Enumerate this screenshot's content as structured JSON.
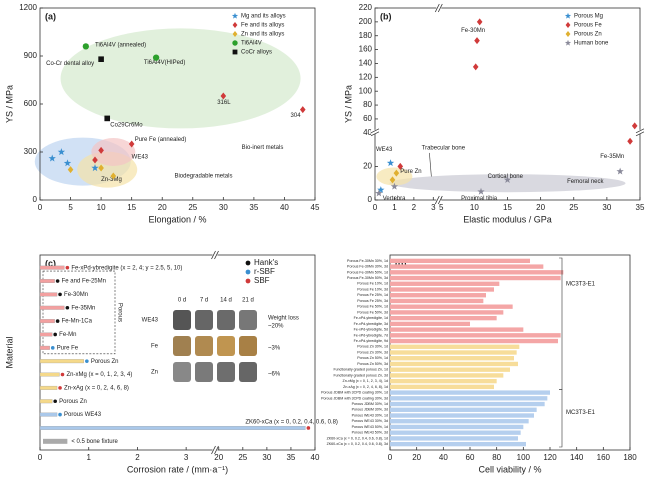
{
  "chart_data": [
    {
      "type": "scatter",
      "label": "(a)",
      "xlabel": "Elongation / %",
      "ylabel": "YS / MPa",
      "xlim": [
        0,
        45
      ],
      "xticks": [
        0,
        5,
        10,
        15,
        20,
        25,
        30,
        35,
        40,
        45
      ],
      "ylim": [
        0,
        1200
      ],
      "yticks": [
        0,
        300,
        600,
        900,
        1200
      ],
      "series": [
        {
          "name": "Mg and its alloys",
          "color": "#3a8fd0",
          "marker": "star",
          "x": [
            2,
            3.5,
            4.5,
            9
          ],
          "y": [
            260,
            300,
            230,
            200
          ]
        },
        {
          "name": "Fe and its alloys",
          "color": "#d03a3a",
          "marker": "diamond",
          "x": [
            9,
            10,
            15,
            30,
            43
          ],
          "y": [
            250,
            310,
            350,
            650,
            565
          ]
        },
        {
          "name": "Zn and its alloys",
          "color": "#e0b030",
          "marker": "diamond",
          "x": [
            5,
            10,
            12
          ],
          "y": [
            190,
            200,
            150
          ]
        },
        {
          "name": "Ti6Al4V",
          "color": "#2ca02c",
          "marker": "circle",
          "x": [
            7.5,
            19
          ],
          "y": [
            960,
            890
          ]
        },
        {
          "name": "CoCr alloys",
          "color": "#111111",
          "marker": "square",
          "x": [
            10,
            11
          ],
          "y": [
            880,
            510
          ]
        }
      ],
      "annotations": [
        "Ti6Al4V (annealed)",
        "Ti6Al4V(HIPed)",
        "Co-Cr dental alloy",
        "Co29Cr6Mo",
        "316L",
        "304",
        "Pure Fe (annealed)",
        "WE43",
        "Zn-3Mg"
      ],
      "regions": [
        "Bio-inert metals",
        "Biodegradable metals"
      ],
      "legend": "upper right"
    },
    {
      "type": "scatter",
      "label": "(b)",
      "xlabel": "Elastic modulus / GPa",
      "ylabel": "YS / MPa",
      "xlim": [
        0,
        35
      ],
      "xbreak": [
        3,
        5
      ],
      "xticks": [
        0,
        1,
        2,
        3,
        5,
        10,
        15,
        20,
        25,
        30,
        35
      ],
      "ylim": [
        0,
        220
      ],
      "ybreak": [
        40,
        40
      ],
      "yticks": [
        0,
        20,
        40,
        60,
        80,
        100,
        120,
        140,
        160,
        180,
        200,
        220
      ],
      "series": [
        {
          "name": "Porous Mg",
          "color": "#3a8fd0",
          "marker": "star",
          "x": [
            0.8,
            0.3
          ],
          "y": [
            22,
            6
          ]
        },
        {
          "name": "Porous Fe",
          "color": "#d03a3a",
          "marker": "diamond",
          "x": [
            1.3,
            10.2,
            10.4,
            10.8,
            33.5,
            34.2
          ],
          "y": [
            20,
            135,
            173,
            200,
            35,
            50
          ]
        },
        {
          "name": "Porous Zn",
          "color": "#e0b030",
          "marker": "diamond",
          "x": [
            0.9,
            1.1
          ],
          "y": [
            12,
            16
          ]
        },
        {
          "name": "Human bone",
          "color": "#8a8a9a",
          "marker": "star",
          "x": [
            0.2,
            1,
            11,
            15,
            32
          ],
          "y": [
            4,
            8,
            5,
            12,
            17
          ]
        }
      ],
      "annotations": [
        "WE43",
        "Pure Zn",
        "Trabecular bone",
        "Vertebra",
        "Cortical bone",
        "Proximal tibia",
        "Femoral neck",
        "Fe-30Mn",
        "Fe-35Mn"
      ],
      "legend": "upper right"
    },
    {
      "type": "hbar",
      "label": "(c)",
      "xlabel": "Corrosion rate / (mm·a⁻¹)",
      "ylabel": "Material",
      "xlim": [
        0,
        40
      ],
      "xbreak": [
        3.5,
        20
      ],
      "xticks": [
        0,
        1,
        2,
        3,
        20,
        25,
        30,
        35,
        40
      ],
      "categories": [
        "Fe-xPd-ybredigite (x = 2, 4; y = 2.5, 5, 10)",
        "Fe and Fe-25Mn",
        "Fe-30Mn",
        "Fe-35Mn",
        "Fe-Mn-1Ca",
        "Fe-Mn",
        "Pure Fe",
        "Porous Zn",
        "Zn-xMg (x = 0, 1, 2, 3, 4)",
        "Zn-xAg (x = 0, 2, 4, 6, 8)",
        "Porous Zn",
        "Porous WE43",
        "ZK60-xCa (x = 0, 0.2, 0.4, 0.6, 0.8)"
      ],
      "values": [
        0.5,
        0.3,
        0.35,
        0.5,
        0.3,
        0.25,
        0.2,
        0.9,
        0.4,
        0.35,
        0.25,
        0.35,
        38
      ],
      "bar_colors": [
        "#f3a0a0",
        "#f3a0a0",
        "#f3a0a0",
        "#f3a0a0",
        "#f3a0a0",
        "#f3a0a0",
        "#f3a0a0",
        "#f5d98a",
        "#f5d98a",
        "#f5d98a",
        "#f5d98a",
        "#aac8ea",
        "#aac8ea"
      ],
      "marker_colors": [
        "#d03a3a",
        "#111111",
        "#111111",
        "#111111",
        "#111111",
        "#111111",
        "#3a8fd0",
        "#3a8fd0",
        "#d03a3a",
        "#d03a3a",
        "#111111",
        "#3a8fd0",
        "#d03a3a"
      ],
      "media": [
        {
          "name": "Hank's",
          "color": "#111111"
        },
        {
          "name": "r-SBF",
          "color": "#3a8fd0"
        },
        {
          "name": "SBF",
          "color": "#d03a3a"
        }
      ],
      "porous_label": "Porous",
      "reference": {
        "name": "< 0.5 bone fixture",
        "value": 0.5,
        "color": "#aaaaaa"
      },
      "inset": {
        "columns": [
          "0 d",
          "7 d",
          "14 d",
          "21 d"
        ],
        "rows": [
          "WE43",
          "Fe",
          "Zn"
        ],
        "weight_loss_label": "Weight loss",
        "weight_loss": [
          "~20%",
          "~3%",
          "~6%"
        ]
      }
    },
    {
      "type": "hbar",
      "label": "(d)",
      "xlabel": "Cell viability / %",
      "xlim": [
        0,
        180
      ],
      "xticks": [
        0,
        20,
        40,
        60,
        80,
        100,
        120,
        140,
        160,
        180
      ],
      "categories": [
        "Porous Fe-30Mn 30%, 1d",
        "Porous Fe-30Mn 30%, 3d",
        "Porous Fe-30Mn 50%, 1d",
        "Porous Fe-30Mn 50%, 3d",
        "Porous Fe 10%, 1d",
        "Porous Fe 10%, 3d",
        "Porous Fe 25%, 1d",
        "Porous Fe 25%, 3d",
        "Porous Fe 50%, 1d",
        "Porous Fe 50%, 3d",
        "Fe-xPd-ybredigite, 1d",
        "Fe-xPd-ybredigite, 3d",
        "Fe-xPd-ybredigite, 5d",
        "Fe-xPd-ybredigite, 7d",
        "Fe-xPd-ybredigite, 9d",
        "Porous Zn 30%, 1d",
        "Porous Zn 30%, 3d",
        "Porous Zn 50%, 1d",
        "Porous Zn 50%, 3d",
        "Functionally graded porous Zn, 1d",
        "Functionally graded porous Zn, 3d",
        "Zn-xMg (x = 0, 1, 2, 3, 4), 1d",
        "Zn-xAg (x = 0, 2, 4, 6, 8), 1d",
        "Porous JDBM with 3CPD coating 30%, 1d",
        "Porous JDBM with 3CPD coating 30%, 3d",
        "Porous JDBM 30%, 1d",
        "Porous JDBM 30%, 3d",
        "Porous WE43 30%, 1d",
        "Porous WE43 30%, 3d",
        "Porous WE43 50%, 1d",
        "Porous WE43 50%, 3d",
        "ZK60-xCa (x = 0, 0.2, 0.4, 0.6, 0.8), 1d",
        "ZK60-xCa (x = 0, 0.2, 0.4, 0.6, 0.8), 3d"
      ],
      "values": [
        105,
        115,
        130,
        128,
        82,
        78,
        72,
        70,
        92,
        85,
        80,
        60,
        100,
        128,
        126,
        97,
        95,
        93,
        96,
        90,
        85,
        80,
        78,
        120,
        118,
        116,
        110,
        108,
        104,
        100,
        98,
        96,
        102
      ],
      "bar_colors": [
        "#f4a6a6",
        "#f4a6a6",
        "#f4a6a6",
        "#f4a6a6",
        "#f4a6a6",
        "#f4a6a6",
        "#f4a6a6",
        "#f4a6a6",
        "#f4a6a6",
        "#f4a6a6",
        "#f4a6a6",
        "#f4a6a6",
        "#f4a6a6",
        "#f4a6a6",
        "#f4a6a6",
        "#f7dd9a",
        "#f7dd9a",
        "#f7dd9a",
        "#f7dd9a",
        "#f7dd9a",
        "#f7dd9a",
        "#f7dd9a",
        "#f7dd9a",
        "#b5cfee",
        "#b5cfee",
        "#b5cfee",
        "#b5cfee",
        "#b5cfee",
        "#b5cfee",
        "#b5cfee",
        "#b5cfee",
        "#b5cfee",
        "#b5cfee"
      ],
      "group_labels": [
        "MC3T3-E1",
        "MC3T3-E1"
      ]
    }
  ]
}
